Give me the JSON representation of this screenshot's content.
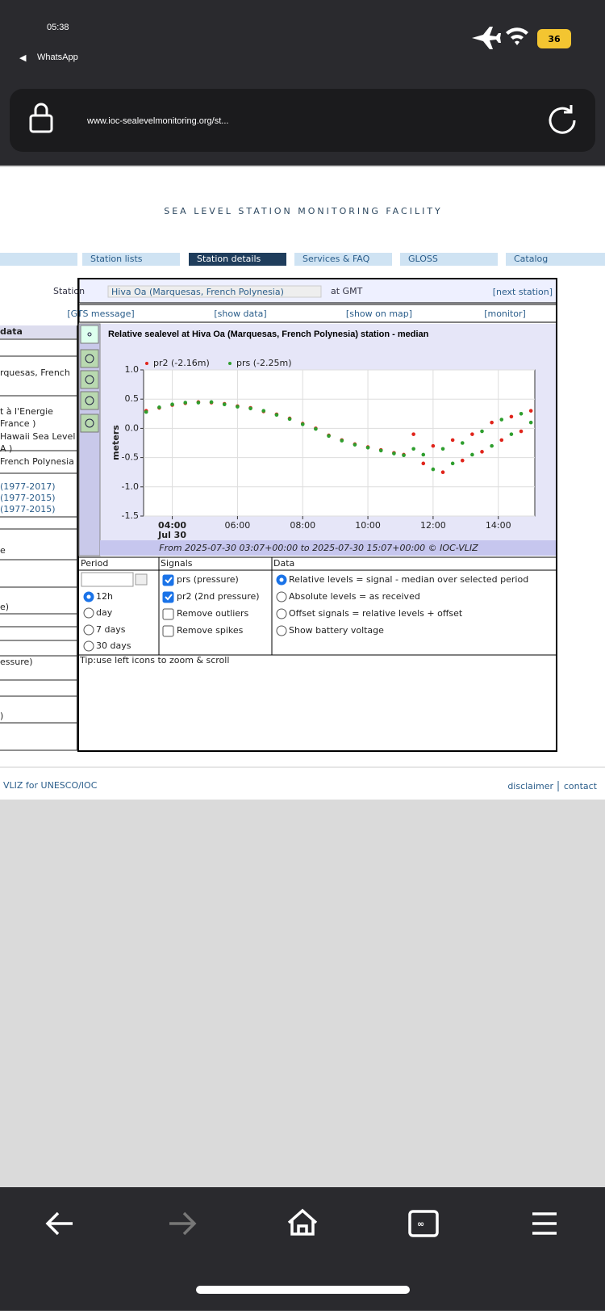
{
  "status_bar": {
    "time": "05:38",
    "back_app": "WhatsApp",
    "battery": "36"
  },
  "browser": {
    "url": "www.ioc-sealevelmonitoring.org/st..."
  },
  "header": {
    "title": "SEA LEVEL STATION MONITORING FACILITY"
  },
  "nav": {
    "tabs": [
      "Station lists",
      "Station details",
      "Services & FAQ",
      "GLOSS",
      "Catalog"
    ],
    "active": 1
  },
  "station_bar": {
    "label": "Station",
    "selected": "Hiva Oa (Marquesas, French Polynesia)",
    "timezone": "at GMT",
    "next": "[next station]"
  },
  "links": [
    "[GTS message]",
    "[show data]",
    "[show on map]",
    "[monitor]"
  ],
  "sidebar": [
    "data",
    "rquesas, French",
    "t à l'Energie",
    "France )",
    "Hawaii Sea Level",
    "A )",
    "French Polynesia",
    "(1977-2017)",
    "(1977-2015)",
    "(1977-2015)",
    "e",
    "e)",
    "essure)",
    ")"
  ],
  "chart_data": {
    "type": "scatter",
    "title": "Relative sealevel at Hiva Oa (Marquesas, French Polynesia) station - median",
    "y_label": "meters",
    "date_label": "Jul 30",
    "caption": "From 2025-07-30 03:07+00:00 to 2025-07-30 15:07+00:00 © IOC-VLIZ",
    "x": [
      3.2,
      3.6,
      4.0,
      4.4,
      4.8,
      5.2,
      5.6,
      6.0,
      6.4,
      6.8,
      7.2,
      7.6,
      8.0,
      8.4,
      8.8,
      9.2,
      9.6,
      10.0,
      10.4,
      10.8,
      11.1,
      11.4,
      11.7,
      12.0,
      12.3,
      12.6,
      12.9,
      13.2,
      13.5,
      13.8,
      14.1,
      14.4,
      14.7,
      15.0
    ],
    "series": [
      {
        "name": "pr2 (-2.16m)",
        "color": "#e0241b",
        "values": [
          0.3,
          0.35,
          0.4,
          0.43,
          0.45,
          0.44,
          0.42,
          0.38,
          0.35,
          0.29,
          0.24,
          0.17,
          0.08,
          0.0,
          -0.12,
          -0.2,
          -0.27,
          -0.32,
          -0.37,
          -0.42,
          -0.45,
          -0.1,
          -0.6,
          -0.3,
          -0.75,
          -0.2,
          -0.55,
          -0.1,
          -0.4,
          0.1,
          -0.2,
          0.2,
          -0.05,
          0.3
        ]
      },
      {
        "name": "prs (-2.25m)",
        "color": "#2e9e2e",
        "values": [
          0.28,
          0.36,
          0.41,
          0.44,
          0.44,
          0.45,
          0.41,
          0.37,
          0.34,
          0.3,
          0.23,
          0.16,
          0.07,
          -0.01,
          -0.13,
          -0.21,
          -0.28,
          -0.33,
          -0.38,
          -0.43,
          -0.46,
          -0.35,
          -0.45,
          -0.7,
          -0.35,
          -0.6,
          -0.25,
          -0.45,
          -0.05,
          -0.3,
          0.15,
          -0.1,
          0.25,
          0.1
        ]
      }
    ],
    "xlim": [
      3.12,
      15.12
    ],
    "xticks": [
      {
        "value": 4,
        "label": "04:00"
      },
      {
        "value": 6,
        "label": "06:00"
      },
      {
        "value": 8,
        "label": "08:00"
      },
      {
        "value": 10,
        "label": "10:00"
      },
      {
        "value": 12,
        "label": "12:00"
      },
      {
        "value": 14,
        "label": "14:00"
      }
    ],
    "ylim": [
      -1.5,
      1.0
    ],
    "yticks": [
      {
        "value": 1,
        "label": "1.0"
      },
      0.5,
      {
        "value": 0,
        "label": "0.0"
      },
      -0.5,
      {
        "value": -1,
        "label": "-1.0"
      },
      -1.5
    ],
    "grid": true
  },
  "controls": {
    "period": {
      "title": "Period",
      "options": [
        "12h",
        "day",
        "7 days",
        "30 days"
      ],
      "selected": 0
    },
    "signals": {
      "title": "Signals",
      "options": [
        {
          "label": "prs (pressure)",
          "checked": true
        },
        {
          "label": "pr2 (2nd pressure)",
          "checked": true
        },
        {
          "label": "Remove outliers",
          "checked": false
        },
        {
          "label": "Remove spikes",
          "checked": false
        }
      ]
    },
    "data": {
      "title": "Data",
      "options": [
        "Relative levels = signal - median over selected period",
        "Absolute levels = as received",
        "Offset signals = relative levels + offset",
        "Show battery voltage"
      ],
      "selected": 0
    }
  },
  "tip": "Tip:use left icons to zoom & scroll",
  "footer": {
    "credit": "VLIZ for UNESCO/IOC",
    "links": [
      "disclaimer",
      "contact"
    ]
  }
}
